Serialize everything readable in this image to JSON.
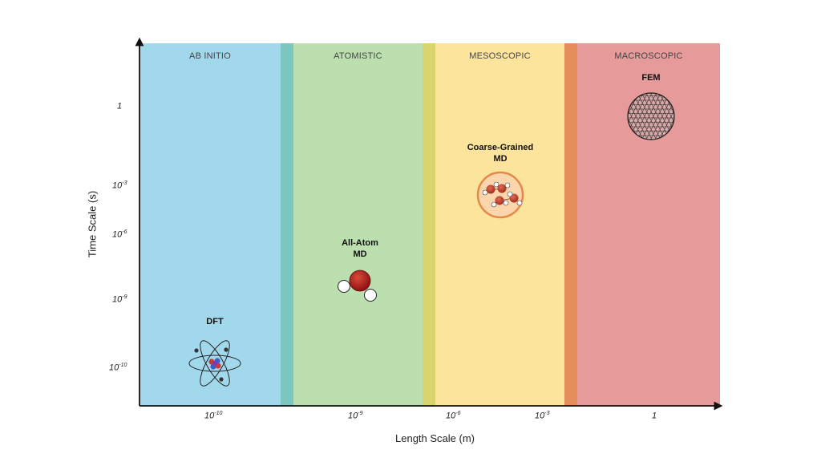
{
  "regions": {
    "ab_initio": "AB INITIO",
    "atomistic": "ATOMISTIC",
    "mesoscopic": "MESOSCOPIC",
    "macroscopic": "MACROSCOPIC"
  },
  "colors": {
    "ab_initio": "#a2d8ec",
    "ab_atom_transition": "#7bc6c0",
    "atomistic": "#bcdfb0",
    "atom_meso_transition": "#d9d46b",
    "mesoscopic": "#fde49c",
    "meso_macro_transition": "#e58e5a",
    "macroscopic": "#e69a9a"
  },
  "axes": {
    "x_title": "Length Scale (m)",
    "y_title": "Time Scale (s)",
    "x_ticks": [
      {
        "base": "10",
        "exp": "-10"
      },
      {
        "base": "10",
        "exp": "-9"
      },
      {
        "base": "10",
        "exp": "-6"
      },
      {
        "base": "10",
        "exp": "-3"
      },
      {
        "base": "1",
        "exp": ""
      }
    ],
    "y_ticks": [
      {
        "base": "1",
        "exp": ""
      },
      {
        "base": "10",
        "exp": "-3"
      },
      {
        "base": "10",
        "exp": "-6"
      },
      {
        "base": "10",
        "exp": "-9"
      },
      {
        "base": "10",
        "exp": "-10"
      }
    ]
  },
  "methods": {
    "dft": "DFT",
    "all_atom_line1": "All-Atom",
    "all_atom_line2": "MD",
    "cg_line1": "Coarse-Grained",
    "cg_line2": "MD",
    "fem": "FEM"
  }
}
